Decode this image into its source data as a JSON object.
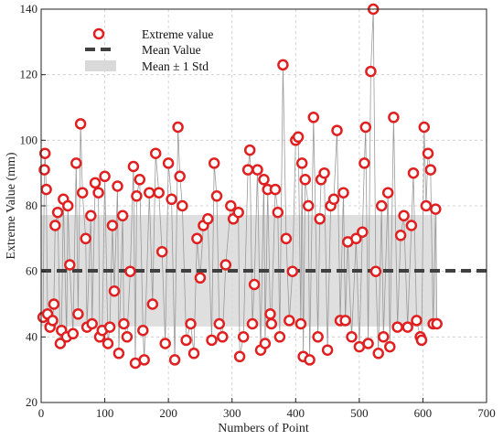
{
  "chart_data": {
    "type": "scatter",
    "title": "",
    "xlabel": "Numbers of Point",
    "ylabel": "Extreme Value (mm)",
    "xlim": [
      0,
      700
    ],
    "ylim": [
      20,
      140
    ],
    "xticks": [
      0,
      100,
      200,
      300,
      400,
      500,
      600,
      700
    ],
    "yticks": [
      20,
      40,
      60,
      80,
      100,
      120,
      140
    ],
    "grid": true,
    "legend_position": "top-left",
    "colors": {
      "marker": "#e02020",
      "connector": "#9a9a9a",
      "mean_line": "#404040",
      "std_band": "#d9d9d9"
    },
    "legend": [
      {
        "label": "Extreme value",
        "kind": "marker"
      },
      {
        "label": "Mean Value",
        "kind": "dashed-line"
      },
      {
        "label": "Mean ± 1 Std",
        "kind": "band"
      }
    ],
    "mean": 60.2,
    "std": 17.0,
    "n_points": 620,
    "series": [
      {
        "name": "Extreme value",
        "points": [
          [
            3,
            46
          ],
          [
            5,
            91
          ],
          [
            6,
            96
          ],
          [
            8,
            85
          ],
          [
            10,
            47
          ],
          [
            14,
            43
          ],
          [
            18,
            45
          ],
          [
            20,
            50
          ],
          [
            22,
            74
          ],
          [
            26,
            78
          ],
          [
            30,
            38
          ],
          [
            32,
            42
          ],
          [
            35,
            82
          ],
          [
            40,
            40
          ],
          [
            42,
            80
          ],
          [
            45,
            62
          ],
          [
            50,
            41
          ],
          [
            55,
            93
          ],
          [
            58,
            47
          ],
          [
            62,
            105
          ],
          [
            65,
            84
          ],
          [
            70,
            70
          ],
          [
            72,
            43
          ],
          [
            78,
            77
          ],
          [
            80,
            44
          ],
          [
            85,
            87
          ],
          [
            90,
            84
          ],
          [
            92,
            40
          ],
          [
            96,
            42
          ],
          [
            100,
            89
          ],
          [
            105,
            38
          ],
          [
            108,
            43
          ],
          [
            112,
            74
          ],
          [
            115,
            54
          ],
          [
            120,
            86
          ],
          [
            122,
            35
          ],
          [
            128,
            77
          ],
          [
            130,
            44
          ],
          [
            135,
            40
          ],
          [
            140,
            60
          ],
          [
            145,
            92
          ],
          [
            148,
            32
          ],
          [
            150,
            83
          ],
          [
            155,
            88
          ],
          [
            160,
            42
          ],
          [
            162,
            33
          ],
          [
            170,
            84
          ],
          [
            175,
            50
          ],
          [
            180,
            96
          ],
          [
            185,
            84
          ],
          [
            190,
            66
          ],
          [
            195,
            38
          ],
          [
            200,
            93
          ],
          [
            205,
            82
          ],
          [
            210,
            33
          ],
          [
            215,
            104
          ],
          [
            218,
            89
          ],
          [
            222,
            80
          ],
          [
            228,
            39
          ],
          [
            235,
            44
          ],
          [
            240,
            35
          ],
          [
            245,
            70
          ],
          [
            250,
            58
          ],
          [
            255,
            74
          ],
          [
            262,
            76
          ],
          [
            268,
            39
          ],
          [
            272,
            93
          ],
          [
            276,
            83
          ],
          [
            280,
            44
          ],
          [
            285,
            40
          ],
          [
            290,
            62
          ],
          [
            298,
            80
          ],
          [
            302,
            76
          ],
          [
            310,
            78
          ],
          [
            312,
            34
          ],
          [
            318,
            40
          ],
          [
            325,
            91
          ],
          [
            328,
            97
          ],
          [
            332,
            44
          ],
          [
            335,
            56
          ],
          [
            340,
            91
          ],
          [
            345,
            36
          ],
          [
            350,
            88
          ],
          [
            352,
            38
          ],
          [
            356,
            85
          ],
          [
            360,
            47
          ],
          [
            362,
            44
          ],
          [
            368,
            85
          ],
          [
            372,
            78
          ],
          [
            375,
            40
          ],
          [
            380,
            123
          ],
          [
            385,
            70
          ],
          [
            390,
            45
          ],
          [
            395,
            60
          ],
          [
            400,
            100
          ],
          [
            404,
            101
          ],
          [
            408,
            44
          ],
          [
            410,
            93
          ],
          [
            412,
            34
          ],
          [
            415,
            88
          ],
          [
            420,
            80
          ],
          [
            422,
            33
          ],
          [
            428,
            107
          ],
          [
            435,
            40
          ],
          [
            438,
            76
          ],
          [
            440,
            88
          ],
          [
            445,
            90
          ],
          [
            450,
            36
          ],
          [
            455,
            80
          ],
          [
            460,
            82
          ],
          [
            465,
            103
          ],
          [
            470,
            45
          ],
          [
            475,
            84
          ],
          [
            478,
            45
          ],
          [
            482,
            69
          ],
          [
            488,
            40
          ],
          [
            495,
            70
          ],
          [
            500,
            37
          ],
          [
            505,
            72
          ],
          [
            508,
            93
          ],
          [
            510,
            104
          ],
          [
            514,
            38
          ],
          [
            518,
            121
          ],
          [
            522,
            140
          ],
          [
            526,
            60
          ],
          [
            530,
            35
          ],
          [
            535,
            80
          ],
          [
            538,
            40
          ],
          [
            545,
            84
          ],
          [
            548,
            37
          ],
          [
            554,
            107
          ],
          [
            560,
            43
          ],
          [
            565,
            71
          ],
          [
            570,
            77
          ],
          [
            576,
            43
          ],
          [
            582,
            74
          ],
          [
            585,
            90
          ],
          [
            590,
            45
          ],
          [
            596,
            40
          ],
          [
            598,
            39
          ],
          [
            602,
            104
          ],
          [
            605,
            80
          ],
          [
            608,
            96
          ],
          [
            612,
            91
          ],
          [
            616,
            44
          ],
          [
            620,
            79
          ],
          [
            622,
            44
          ]
        ]
      }
    ]
  }
}
